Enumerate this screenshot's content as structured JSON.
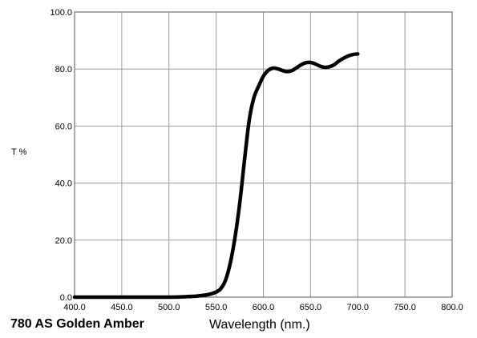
{
  "chart_data": {
    "type": "line",
    "title": "780 AS Golden Amber",
    "xlabel": "Wavelength (nm.)",
    "ylabel": "T %",
    "xlim": [
      400,
      800
    ],
    "ylim": [
      0,
      100
    ],
    "xticks": [
      400,
      450,
      500,
      550,
      600,
      650,
      700,
      750,
      800
    ],
    "yticks": [
      0,
      20,
      40,
      60,
      80,
      100
    ],
    "xtick_labels": [
      "400.0",
      "450.0",
      "500.0",
      "550.0",
      "600.0",
      "650.0",
      "700.0",
      "750.0",
      "800.0"
    ],
    "ytick_labels": [
      "0.0",
      "20.0",
      "40.0",
      "60.0",
      "80.0",
      "100.0"
    ],
    "grid": true,
    "series": [
      {
        "color": "#000000",
        "x": [
          400,
          450,
          500,
          520,
          530,
          540,
          545,
          550,
          555,
          560,
          565,
          570,
          575,
          580,
          585,
          590,
          595,
          600,
          605,
          610,
          615,
          620,
          625,
          630,
          635,
          640,
          645,
          650,
          655,
          660,
          665,
          670,
          675,
          680,
          685,
          690,
          695,
          700
        ],
        "y": [
          0,
          0,
          0,
          0.2,
          0.4,
          0.8,
          1.2,
          1.8,
          3,
          6,
          12,
          21,
          33,
          48,
          62,
          70,
          74,
          77.5,
          79.5,
          80.3,
          80.1,
          79.5,
          79.1,
          79.4,
          80.4,
          81.5,
          82.2,
          82.3,
          81.8,
          81,
          80.6,
          80.8,
          81.5,
          82.8,
          83.8,
          84.6,
          85.1,
          85.3
        ]
      }
    ]
  }
}
